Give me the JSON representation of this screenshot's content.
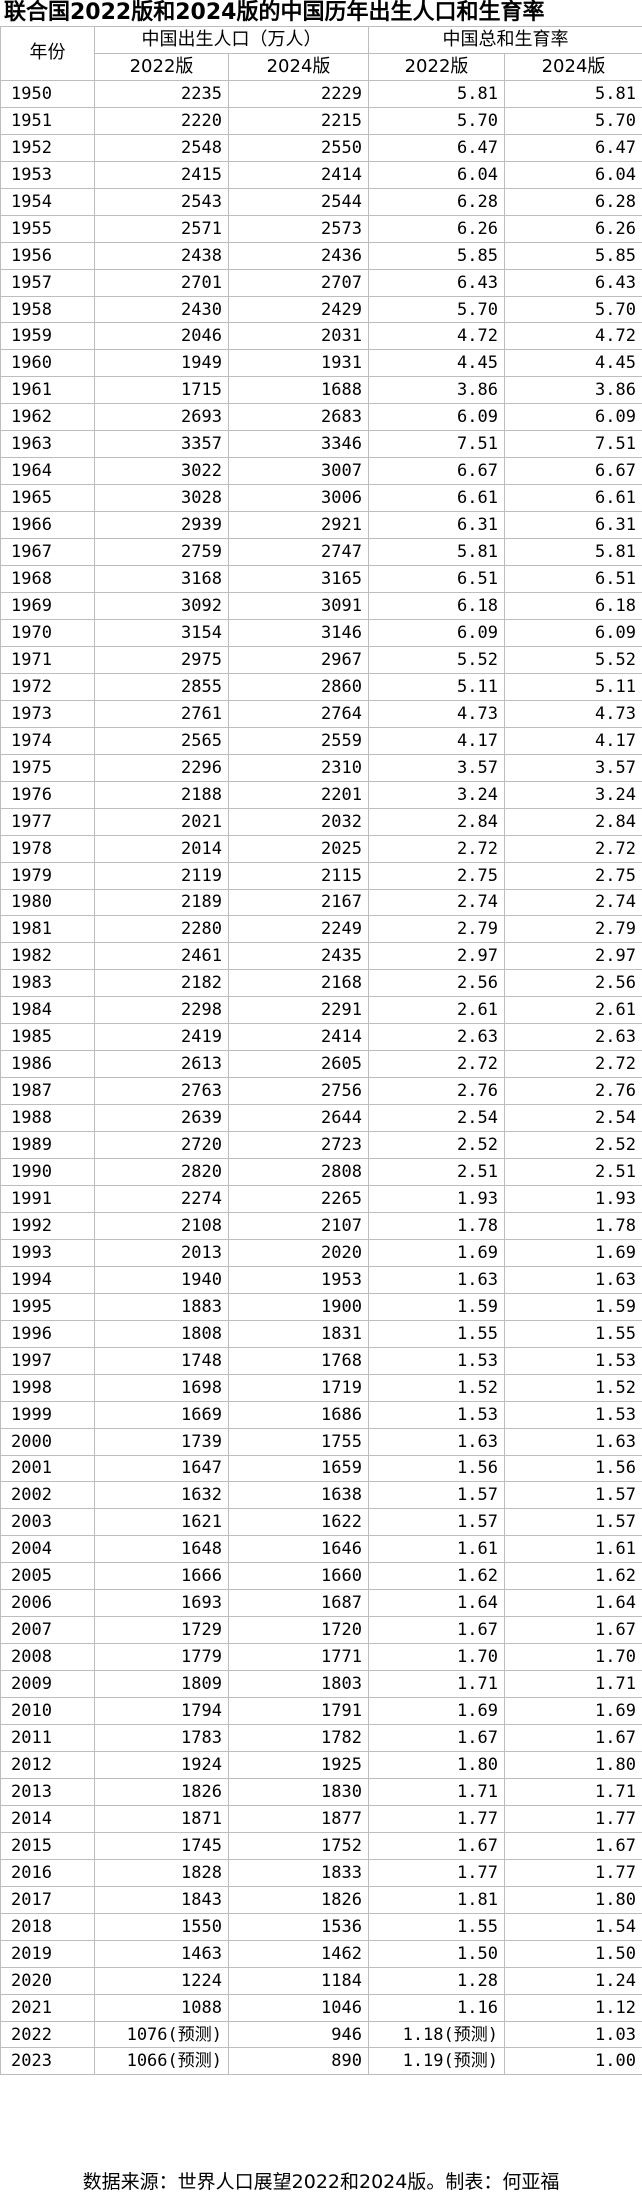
{
  "title": "联合国2022版和2024版的中国历年出生人口和生育率",
  "header": {
    "year": "年份",
    "births_group": "中国出生人口（万人）",
    "tfr_group": "中国总和生育率",
    "v2022": "2022版",
    "v2024": "2024版"
  },
  "rows": [
    [
      "1950",
      "2235",
      "2229",
      "5.81",
      "5.81"
    ],
    [
      "1951",
      "2220",
      "2215",
      "5.70",
      "5.70"
    ],
    [
      "1952",
      "2548",
      "2550",
      "6.47",
      "6.47"
    ],
    [
      "1953",
      "2415",
      "2414",
      "6.04",
      "6.04"
    ],
    [
      "1954",
      "2543",
      "2544",
      "6.28",
      "6.28"
    ],
    [
      "1955",
      "2571",
      "2573",
      "6.26",
      "6.26"
    ],
    [
      "1956",
      "2438",
      "2436",
      "5.85",
      "5.85"
    ],
    [
      "1957",
      "2701",
      "2707",
      "6.43",
      "6.43"
    ],
    [
      "1958",
      "2430",
      "2429",
      "5.70",
      "5.70"
    ],
    [
      "1959",
      "2046",
      "2031",
      "4.72",
      "4.72"
    ],
    [
      "1960",
      "1949",
      "1931",
      "4.45",
      "4.45"
    ],
    [
      "1961",
      "1715",
      "1688",
      "3.86",
      "3.86"
    ],
    [
      "1962",
      "2693",
      "2683",
      "6.09",
      "6.09"
    ],
    [
      "1963",
      "3357",
      "3346",
      "7.51",
      "7.51"
    ],
    [
      "1964",
      "3022",
      "3007",
      "6.67",
      "6.67"
    ],
    [
      "1965",
      "3028",
      "3006",
      "6.61",
      "6.61"
    ],
    [
      "1966",
      "2939",
      "2921",
      "6.31",
      "6.31"
    ],
    [
      "1967",
      "2759",
      "2747",
      "5.81",
      "5.81"
    ],
    [
      "1968",
      "3168",
      "3165",
      "6.51",
      "6.51"
    ],
    [
      "1969",
      "3092",
      "3091",
      "6.18",
      "6.18"
    ],
    [
      "1970",
      "3154",
      "3146",
      "6.09",
      "6.09"
    ],
    [
      "1971",
      "2975",
      "2967",
      "5.52",
      "5.52"
    ],
    [
      "1972",
      "2855",
      "2860",
      "5.11",
      "5.11"
    ],
    [
      "1973",
      "2761",
      "2764",
      "4.73",
      "4.73"
    ],
    [
      "1974",
      "2565",
      "2559",
      "4.17",
      "4.17"
    ],
    [
      "1975",
      "2296",
      "2310",
      "3.57",
      "3.57"
    ],
    [
      "1976",
      "2188",
      "2201",
      "3.24",
      "3.24"
    ],
    [
      "1977",
      "2021",
      "2032",
      "2.84",
      "2.84"
    ],
    [
      "1978",
      "2014",
      "2025",
      "2.72",
      "2.72"
    ],
    [
      "1979",
      "2119",
      "2115",
      "2.75",
      "2.75"
    ],
    [
      "1980",
      "2189",
      "2167",
      "2.74",
      "2.74"
    ],
    [
      "1981",
      "2280",
      "2249",
      "2.79",
      "2.79"
    ],
    [
      "1982",
      "2461",
      "2435",
      "2.97",
      "2.97"
    ],
    [
      "1983",
      "2182",
      "2168",
      "2.56",
      "2.56"
    ],
    [
      "1984",
      "2298",
      "2291",
      "2.61",
      "2.61"
    ],
    [
      "1985",
      "2419",
      "2414",
      "2.63",
      "2.63"
    ],
    [
      "1986",
      "2613",
      "2605",
      "2.72",
      "2.72"
    ],
    [
      "1987",
      "2763",
      "2756",
      "2.76",
      "2.76"
    ],
    [
      "1988",
      "2639",
      "2644",
      "2.54",
      "2.54"
    ],
    [
      "1989",
      "2720",
      "2723",
      "2.52",
      "2.52"
    ],
    [
      "1990",
      "2820",
      "2808",
      "2.51",
      "2.51"
    ],
    [
      "1991",
      "2274",
      "2265",
      "1.93",
      "1.93"
    ],
    [
      "1992",
      "2108",
      "2107",
      "1.78",
      "1.78"
    ],
    [
      "1993",
      "2013",
      "2020",
      "1.69",
      "1.69"
    ],
    [
      "1994",
      "1940",
      "1953",
      "1.63",
      "1.63"
    ],
    [
      "1995",
      "1883",
      "1900",
      "1.59",
      "1.59"
    ],
    [
      "1996",
      "1808",
      "1831",
      "1.55",
      "1.55"
    ],
    [
      "1997",
      "1748",
      "1768",
      "1.53",
      "1.53"
    ],
    [
      "1998",
      "1698",
      "1719",
      "1.52",
      "1.52"
    ],
    [
      "1999",
      "1669",
      "1686",
      "1.53",
      "1.53"
    ],
    [
      "2000",
      "1739",
      "1755",
      "1.63",
      "1.63"
    ],
    [
      "2001",
      "1647",
      "1659",
      "1.56",
      "1.56"
    ],
    [
      "2002",
      "1632",
      "1638",
      "1.57",
      "1.57"
    ],
    [
      "2003",
      "1621",
      "1622",
      "1.57",
      "1.57"
    ],
    [
      "2004",
      "1648",
      "1646",
      "1.61",
      "1.61"
    ],
    [
      "2005",
      "1666",
      "1660",
      "1.62",
      "1.62"
    ],
    [
      "2006",
      "1693",
      "1687",
      "1.64",
      "1.64"
    ],
    [
      "2007",
      "1729",
      "1720",
      "1.67",
      "1.67"
    ],
    [
      "2008",
      "1779",
      "1771",
      "1.70",
      "1.70"
    ],
    [
      "2009",
      "1809",
      "1803",
      "1.71",
      "1.71"
    ],
    [
      "2010",
      "1794",
      "1791",
      "1.69",
      "1.69"
    ],
    [
      "2011",
      "1783",
      "1782",
      "1.67",
      "1.67"
    ],
    [
      "2012",
      "1924",
      "1925",
      "1.80",
      "1.80"
    ],
    [
      "2013",
      "1826",
      "1830",
      "1.71",
      "1.71"
    ],
    [
      "2014",
      "1871",
      "1877",
      "1.77",
      "1.77"
    ],
    [
      "2015",
      "1745",
      "1752",
      "1.67",
      "1.67"
    ],
    [
      "2016",
      "1828",
      "1833",
      "1.77",
      "1.77"
    ],
    [
      "2017",
      "1843",
      "1826",
      "1.81",
      "1.80"
    ],
    [
      "2018",
      "1550",
      "1536",
      "1.55",
      "1.54"
    ],
    [
      "2019",
      "1463",
      "1462",
      "1.50",
      "1.50"
    ],
    [
      "2020",
      "1224",
      "1184",
      "1.28",
      "1.24"
    ],
    [
      "2021",
      "1088",
      "1046",
      "1.16",
      "1.12"
    ],
    [
      "2022",
      "1076(预测)",
      "946",
      "1.18(预测)",
      "1.03"
    ],
    [
      "2023",
      "1066(预测)",
      "890",
      "1.19(预测)",
      "1.00"
    ]
  ],
  "source": "数据来源：世界人口展望2022和2024版。制表：何亚福"
}
